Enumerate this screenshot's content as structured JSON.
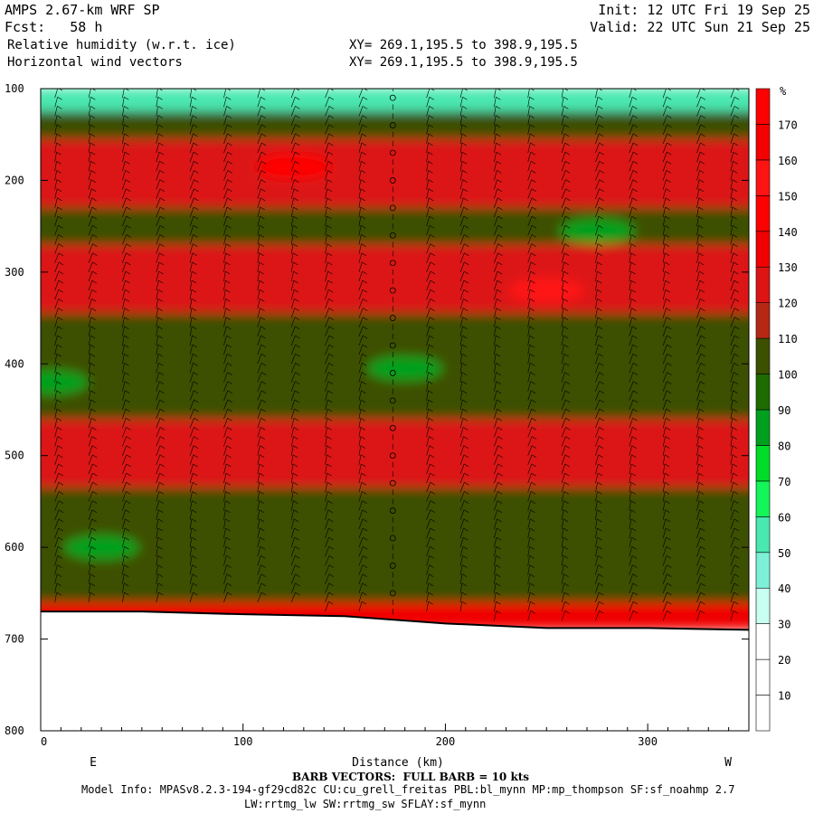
{
  "header": {
    "model": "AMPS 2.67-km WRF SP",
    "forecast": "Fcst:   58 h",
    "field1": "Relative humidity (w.r.t. ice)",
    "field2": "Horizontal wind vectors",
    "xy1": "XY= 269.1,195.5 to 398.9,195.5",
    "xy2": "XY= 269.1,195.5 to 398.9,195.5",
    "init": "Init: 12 UTC Fri 19 Sep 25",
    "valid": "Valid: 22 UTC Sun 21 Sep 25"
  },
  "footer": {
    "barb_note": "BARB VECTORS:  FULL BARB = 10 kts",
    "model_info": "Model Info: MPASv8.2.3-194-gf29cd82c CU:cu_grell_freitas PBL:bl_mynn MP:mp_thompson SF:sf_noahmp 2.7",
    "model_info2": "LW:rrtmg_lw SW:rrtmg_sw SFLAY:sf_mynn"
  },
  "chart_data": {
    "type": "heatmap",
    "xlabel": "Distance (km)",
    "ylabel": "",
    "xlim": [
      0,
      350
    ],
    "ylim": [
      800,
      100
    ],
    "x_ticks": [
      0,
      100,
      200,
      300
    ],
    "y_ticks": [
      100,
      200,
      300,
      400,
      500,
      600,
      700,
      800
    ],
    "x_end_labels": {
      "left": "E",
      "right": "W"
    },
    "colorbar": {
      "unit": "%",
      "levels": [
        10,
        20,
        30,
        40,
        50,
        60,
        70,
        80,
        90,
        100,
        110,
        120,
        130,
        140,
        150,
        160,
        170
      ],
      "colors": [
        "#ffffff",
        "#ffffff",
        "#ffffff",
        "#c8fff0",
        "#7ff0d8",
        "#48e8b0",
        "#14f55a",
        "#00dc28",
        "#00a01e",
        "#1e6b00",
        "#3c5000",
        "#b42814",
        "#dc1414",
        "#f00000",
        "#ff0000",
        "#ff1414",
        "#f50000",
        "#ff0000"
      ]
    },
    "terrain_pressure": {
      "x": [
        0,
        50,
        100,
        150,
        200,
        250,
        300,
        350
      ],
      "p": [
        670,
        670,
        673,
        675,
        683,
        688,
        688,
        690
      ]
    },
    "rh_bands": [
      {
        "p_top": 100,
        "p_bottom": 125,
        "rh": 50
      },
      {
        "p_top": 125,
        "p_bottom": 155,
        "rh": 100
      },
      {
        "p_top": 155,
        "p_bottom": 230,
        "rh": 125
      },
      {
        "p_top": 230,
        "p_bottom": 270,
        "rh": 100
      },
      {
        "p_top": 270,
        "p_bottom": 345,
        "rh": 125
      },
      {
        "p_top": 345,
        "p_bottom": 460,
        "rh": 100
      },
      {
        "p_top": 460,
        "p_bottom": 535,
        "rh": 125
      },
      {
        "p_top": 535,
        "p_bottom": 660,
        "rh": 100
      },
      {
        "p_top": 660,
        "p_bottom": 690,
        "rh": 130
      }
    ],
    "rh_features": [
      {
        "x": 125,
        "p": 185,
        "rh": 170
      },
      {
        "x": 275,
        "p": 255,
        "rh": 80
      },
      {
        "x": 250,
        "p": 320,
        "rh": 150
      },
      {
        "x": 180,
        "p": 405,
        "rh": 80
      },
      {
        "x": 5,
        "p": 420,
        "rh": 80
      },
      {
        "x": 315,
        "p": 430,
        "rh": 105
      },
      {
        "x": 245,
        "p": 510,
        "rh": 125
      },
      {
        "x": 30,
        "p": 600,
        "rh": 80
      }
    ]
  }
}
